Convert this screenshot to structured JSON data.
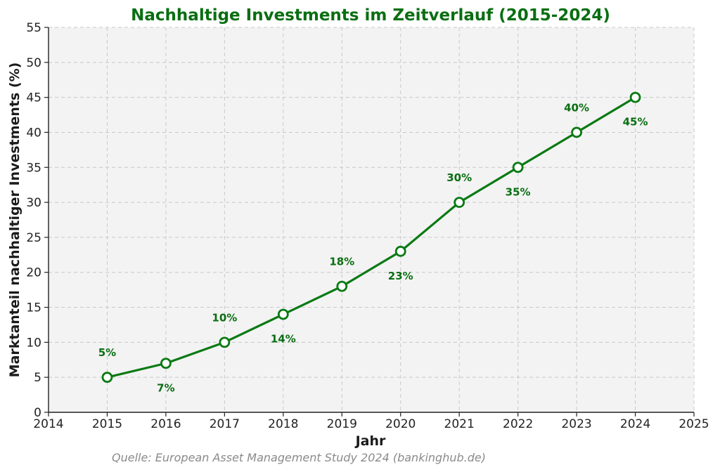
{
  "chart_data": {
    "type": "line",
    "title": "Nachhaltige Investments im Zeitverlauf (2015-2024)",
    "xlabel": "Jahr",
    "ylabel": "Marktanteil nachhaltiger Investments (%)",
    "x": [
      2015,
      2016,
      2017,
      2018,
      2019,
      2020,
      2021,
      2022,
      2023,
      2024
    ],
    "values": [
      5,
      7,
      10,
      14,
      18,
      23,
      30,
      35,
      40,
      45
    ],
    "data_labels": [
      "5%",
      "7%",
      "10%",
      "14%",
      "18%",
      "23%",
      "30%",
      "35%",
      "40%",
      "45%"
    ],
    "xlim": [
      2014,
      2025
    ],
    "ylim": [
      0,
      55
    ],
    "x_ticks": [
      "2014",
      "2015",
      "2016",
      "2017",
      "2018",
      "2019",
      "2020",
      "2021",
      "2022",
      "2023",
      "2024",
      "2025"
    ],
    "y_ticks": [
      "0",
      "5",
      "10",
      "15",
      "20",
      "25",
      "30",
      "35",
      "40",
      "45",
      "50",
      "55"
    ],
    "grid": true,
    "legend": "none",
    "line_color": "#0a7a14",
    "marker_fill": "#ffffff",
    "label_color": "#0a6e12",
    "plot_background": "#f3f3f3"
  },
  "source_note": "Quelle: European Asset Management Study 2024 (bankinghub.de)"
}
